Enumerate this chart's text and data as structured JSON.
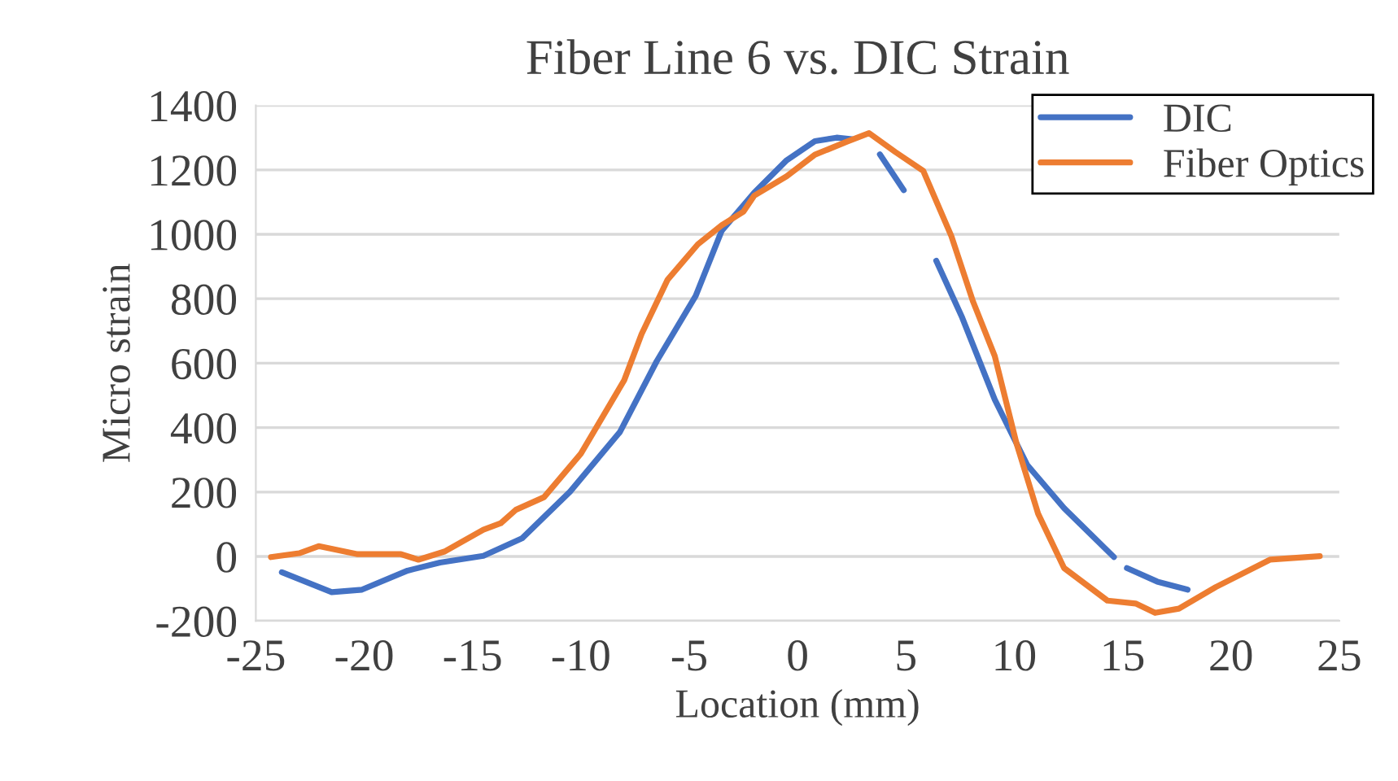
{
  "chart_data": {
    "type": "line",
    "title": "Fiber Line 6 vs. DIC Strain",
    "xlabel": "Location (mm)",
    "ylabel": "Micro strain",
    "xlim": [
      -25,
      25
    ],
    "xticks": [
      -25,
      -20,
      -15,
      -10,
      -5,
      0,
      5,
      10,
      15,
      20,
      25
    ],
    "ylim": [
      -200,
      1400
    ],
    "yticks": [
      -200,
      0,
      200,
      400,
      600,
      800,
      1000,
      1200,
      1400
    ],
    "grid": "y",
    "legend": "top right",
    "marker": "none",
    "line_style": "solid",
    "series": [
      {
        "name": "DIC",
        "color": "#4472c4",
        "x": [
          -23.8,
          -21.5,
          -20.1,
          -18.0,
          -16.5,
          -14.5,
          -12.7,
          -10.5,
          -8.2,
          -6.5,
          -4.7,
          -3.5,
          -2.0,
          -0.5,
          0.8,
          1.8,
          2.5,
          3.2,
          3.8,
          4.9,
          5.6,
          6.4,
          7.6,
          9.1,
          10.6,
          12.3,
          14.6,
          14.9,
          15.2,
          16.6,
          18.0
        ],
        "values": [
          -49,
          -111,
          -103,
          -44,
          -19,
          2,
          57,
          201,
          386,
          606,
          809,
          1011,
          1129,
          1230,
          1289,
          1300,
          1295,
          null,
          1248,
          1137,
          null,
          918,
          741,
          487,
          284,
          150,
          -2,
          null,
          -36,
          -78,
          -103
        ]
      },
      {
        "name": "Fiber Optics",
        "color": "#ed7d31",
        "x": [
          -24.3,
          -23.0,
          -22.1,
          -20.3,
          -18.3,
          -17.5,
          -16.3,
          -14.5,
          -13.7,
          -13.0,
          -11.7,
          -10.0,
          -8.0,
          -7.2,
          -6.0,
          -4.6,
          -3.5,
          -2.5,
          -2.0,
          -0.5,
          0.8,
          2.3,
          3.3,
          4.5,
          5.8,
          7.1,
          8.1,
          9.1,
          10.1,
          11.1,
          12.3,
          14.3,
          15.6,
          16.5,
          17.6,
          19.3,
          21.8,
          24.1
        ],
        "values": [
          -2,
          10,
          32,
          7,
          7,
          -10,
          15,
          83,
          103,
          145,
          184,
          319,
          547,
          690,
          859,
          969,
          1028,
          1070,
          1120,
          1180,
          1247,
          1288,
          1314,
          1256,
          1197,
          994,
          791,
          622,
          352,
          133,
          -36,
          -137,
          -146,
          -175,
          -162,
          -95,
          -10,
          1
        ]
      }
    ]
  }
}
